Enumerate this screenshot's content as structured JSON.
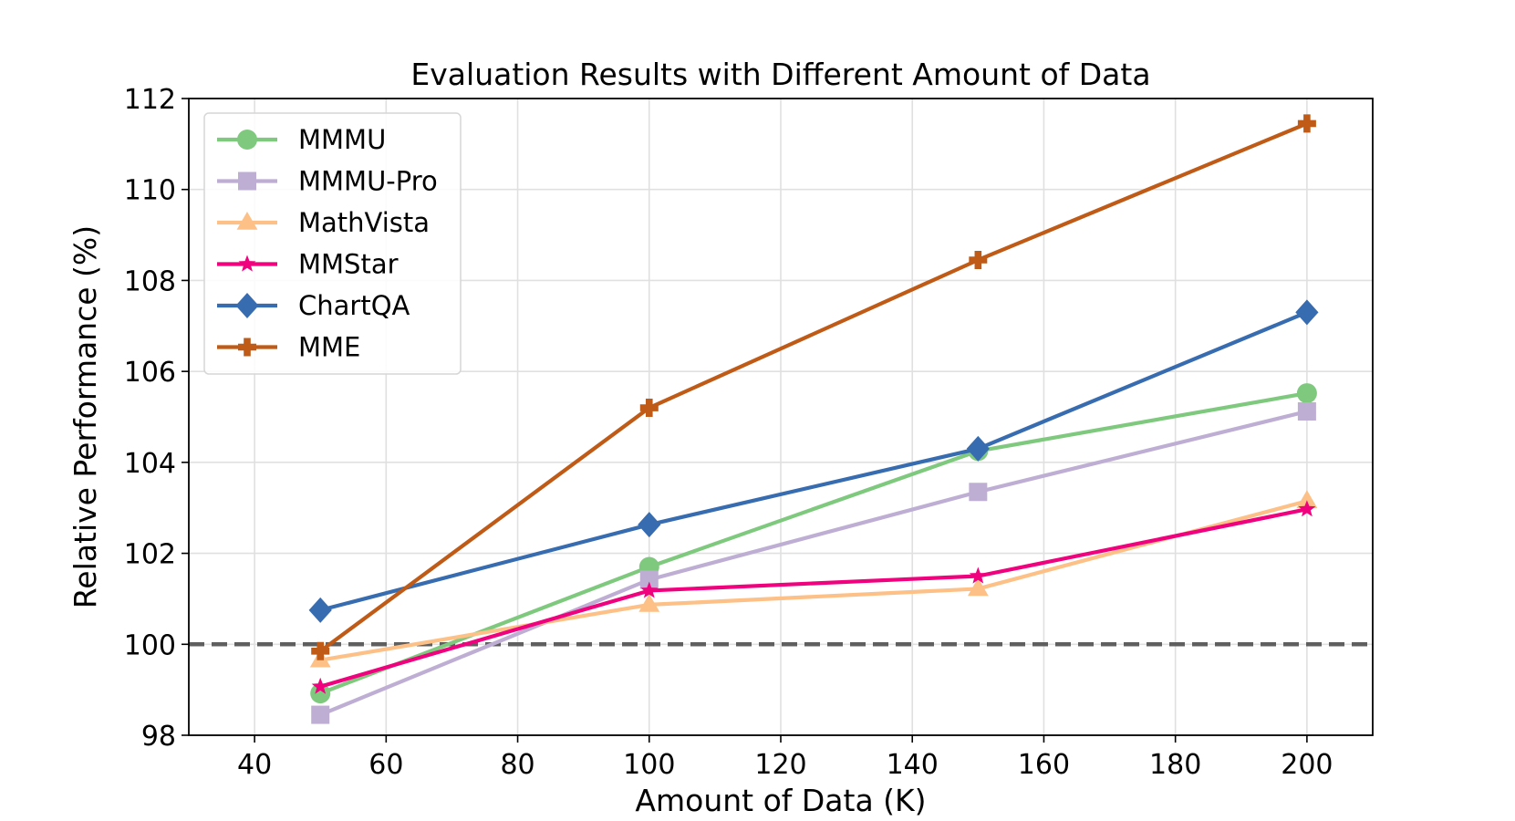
{
  "chart_data": {
    "type": "line",
    "title": "Evaluation Results with Different Amount of Data",
    "xlabel": "Amount of Data (K)",
    "ylabel": "Relative Performance (%)",
    "xlim": [
      30,
      210
    ],
    "ylim": [
      98,
      112
    ],
    "xticks": [
      40,
      60,
      80,
      100,
      120,
      140,
      160,
      180,
      200
    ],
    "yticks": [
      98,
      100,
      102,
      104,
      106,
      108,
      110,
      112
    ],
    "grid": true,
    "legend_position": "top-left",
    "reference_line": {
      "y": 100,
      "style": "dashed",
      "color": "#5f5f5f"
    },
    "x": [
      50,
      100,
      150,
      200
    ],
    "series": [
      {
        "name": "MMMU",
        "marker": "circle",
        "color": "#7fc97f",
        "values": [
          98.92,
          101.7,
          104.25,
          105.52
        ]
      },
      {
        "name": "MMMU-Pro",
        "marker": "square",
        "color": "#beaed4",
        "values": [
          98.45,
          101.42,
          103.35,
          105.12
        ]
      },
      {
        "name": "MathVista",
        "marker": "triangle",
        "color": "#fdc086",
        "values": [
          99.65,
          100.87,
          101.22,
          103.15
        ]
      },
      {
        "name": "MMStar",
        "marker": "star",
        "color": "#f0027f",
        "values": [
          99.07,
          101.18,
          101.5,
          102.97
        ]
      },
      {
        "name": "ChartQA",
        "marker": "diamond",
        "color": "#386cb0",
        "values": [
          100.75,
          102.63,
          104.3,
          107.3
        ]
      },
      {
        "name": "MME",
        "marker": "plus",
        "color": "#bf5b17",
        "values": [
          99.85,
          105.2,
          108.45,
          111.45
        ]
      }
    ]
  }
}
